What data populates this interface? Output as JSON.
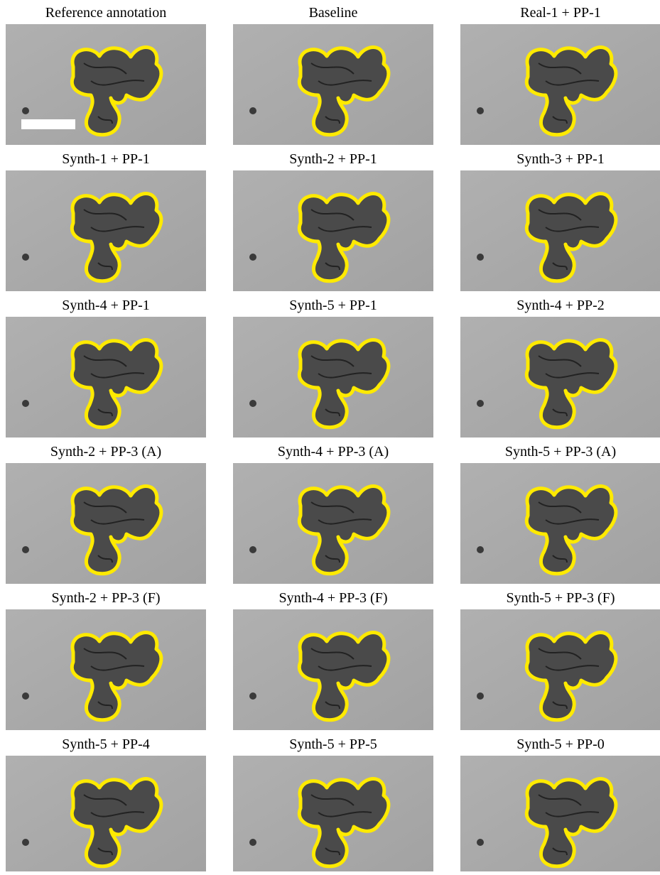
{
  "panels": [
    {
      "title": "Reference annotation"
    },
    {
      "title": "Baseline"
    },
    {
      "title": "Real-1 + PP-1"
    },
    {
      "title": "Synth-1 + PP-1"
    },
    {
      "title": "Synth-2 + PP-1"
    },
    {
      "title": "Synth-3 + PP-1"
    },
    {
      "title": "Synth-4 + PP-1"
    },
    {
      "title": "Synth-5 + PP-1"
    },
    {
      "title": "Synth-4 + PP-2"
    },
    {
      "title": "Synth-2 + PP-3 (A)"
    },
    {
      "title": "Synth-4 + PP-3 (A)"
    },
    {
      "title": "Synth-5 + PP-3 (A)"
    },
    {
      "title": "Synth-2 + PP-3 (F)"
    },
    {
      "title": "Synth-4 + PP-3 (F)"
    },
    {
      "title": "Synth-5 + PP-3 (F)"
    },
    {
      "title": "Synth-5 + PP-4"
    },
    {
      "title": "Synth-5 + PP-5"
    },
    {
      "title": "Synth-5 + PP-0"
    }
  ]
}
